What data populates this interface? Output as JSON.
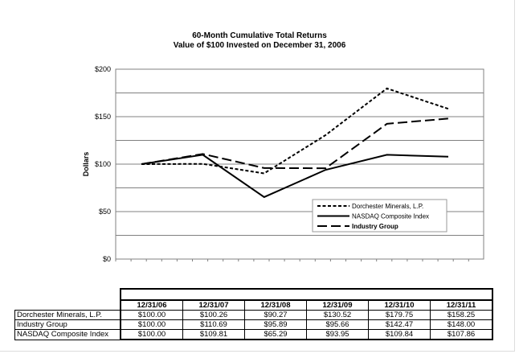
{
  "chart_data": {
    "type": "line",
    "title": "60-Month Cumulative Total Returns",
    "subtitle": "Value of $100 Invested on December 31, 2006",
    "xlabel": "",
    "ylabel": "Dollars",
    "ylim": [
      0,
      200
    ],
    "yticks": [
      "$0",
      "$50",
      "$100",
      "$150",
      "$200"
    ],
    "grid": true,
    "legend_position": "lower-right",
    "categories": [
      "12/31/06",
      "12/31/07",
      "12/31/08",
      "12/31/09",
      "12/31/10",
      "12/31/11"
    ],
    "series": [
      {
        "name": "Dorchester Minerals, L.P.",
        "style": "dotted",
        "values": [
          100.0,
          100.26,
          90.27,
          130.52,
          179.75,
          158.25
        ]
      },
      {
        "name": "NASDAQ Composite Index",
        "style": "solid",
        "values": [
          100.0,
          109.81,
          65.29,
          93.95,
          109.84,
          107.86
        ]
      },
      {
        "name": "Industry Group",
        "style": "dashed",
        "values": [
          100.0,
          110.69,
          95.89,
          95.66,
          142.47,
          148.0
        ]
      }
    ],
    "table": {
      "rows": [
        {
          "label": "Dorchester Minerals, L.P.",
          "values": [
            "$100.00",
            "$100.26",
            "$90.27",
            "$130.52",
            "$179.75",
            "$158.25"
          ]
        },
        {
          "label": "Industry Group",
          "values": [
            "$100.00",
            "$110.69",
            "$95.89",
            "$95.66",
            "$142.47",
            "$148.00"
          ]
        },
        {
          "label": "NASDAQ Composite Index",
          "values": [
            "$100.00",
            "$109.81",
            "$65.29",
            "$93.95",
            "$109.84",
            "$107.86"
          ]
        }
      ]
    }
  }
}
